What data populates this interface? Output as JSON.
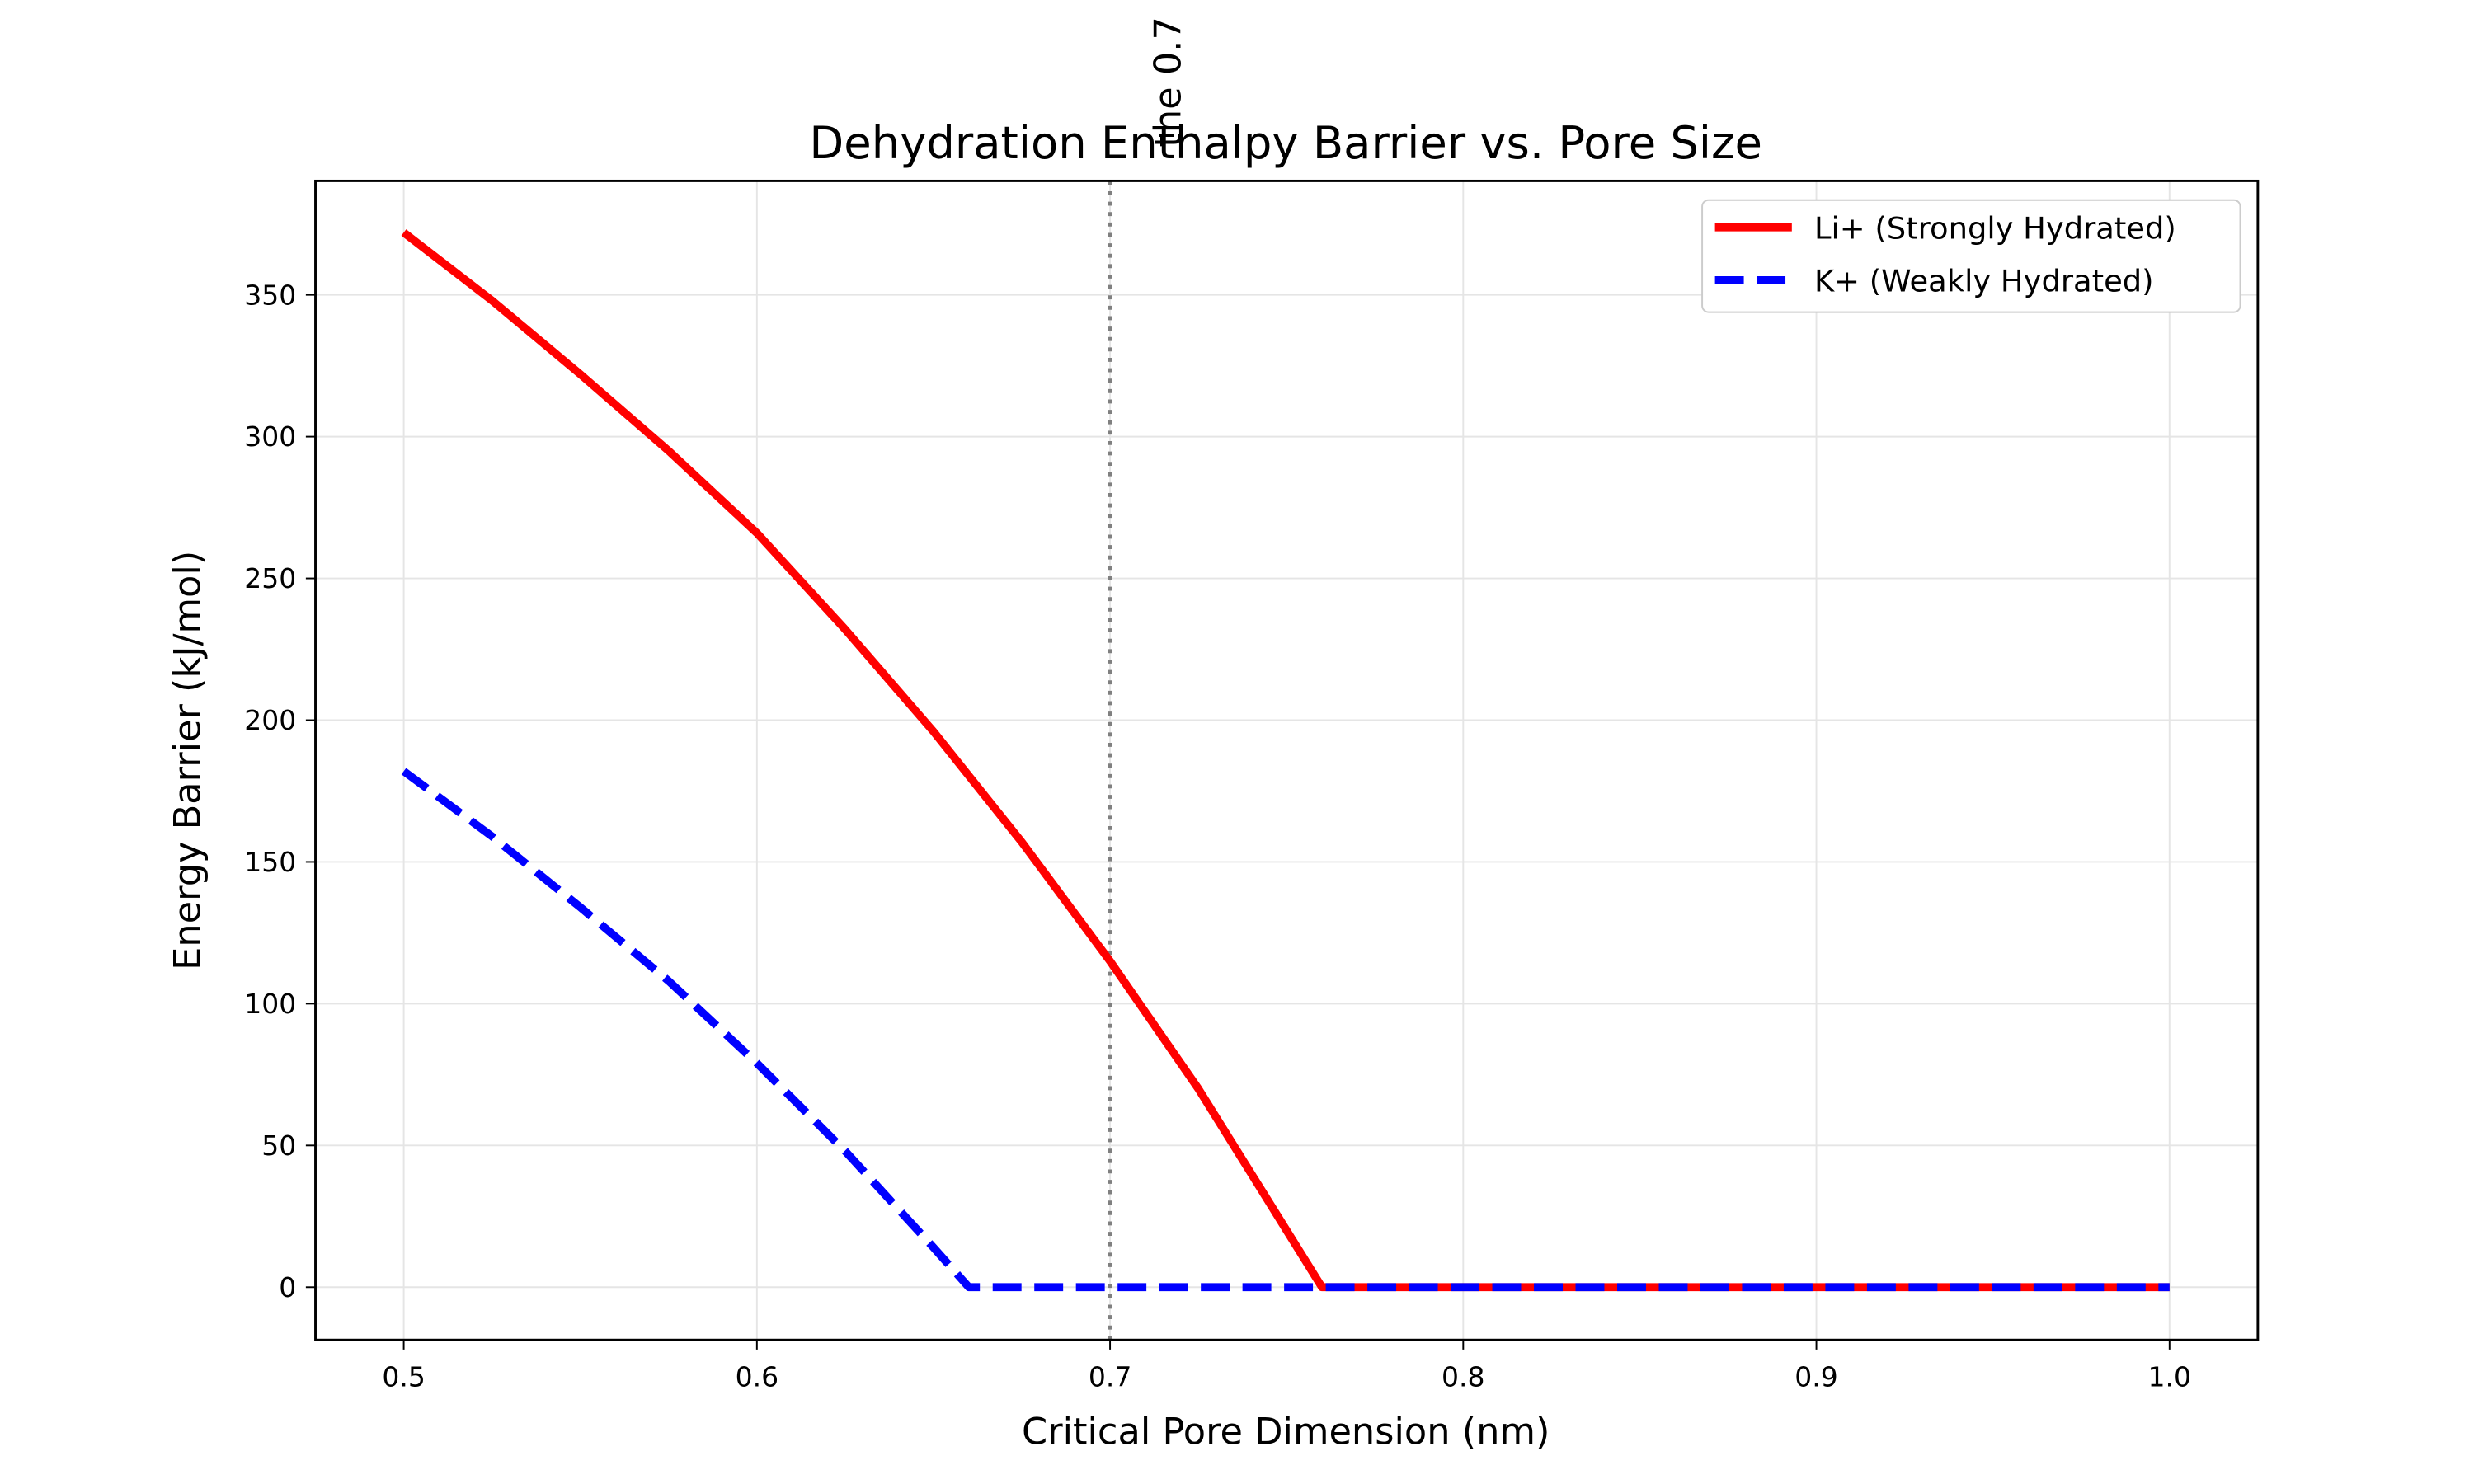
{
  "chart_data": {
    "type": "line",
    "title": "Dehydration Enthalpy Barrier vs. Pore Size",
    "xlabel": "Critical Pore Dimension (nm)",
    "ylabel": "Energy Barrier (kJ/mol)",
    "xlim": [
      0.475,
      1.025
    ],
    "ylim": [
      -18.6,
      390.2
    ],
    "xticks": [
      "0.5",
      "0.6",
      "0.7",
      "0.8",
      "0.9",
      "1.0"
    ],
    "yticks": [
      "0",
      "50",
      "100",
      "150",
      "200",
      "250",
      "300",
      "350"
    ],
    "grid": true,
    "legend_position": "top-right",
    "annotation": {
      "x": 0.7,
      "text": "the 0.7",
      "style": "dotted vertical line",
      "color": "#808080"
    },
    "series": [
      {
        "name": "Li+ (Strongly Hydrated)",
        "color": "#ff0000",
        "style": "solid",
        "x": [
          0.5,
          0.525,
          0.55,
          0.575,
          0.6,
          0.625,
          0.65,
          0.675,
          0.7,
          0.725,
          0.75,
          0.76,
          0.8,
          0.85,
          0.9,
          0.95,
          1.0
        ],
        "y": [
          372,
          348,
          322,
          295,
          266,
          232,
          196,
          157,
          115,
          70,
          20,
          0,
          0,
          0,
          0,
          0,
          0
        ]
      },
      {
        "name": "K+ (Weakly Hydrated)",
        "color": "#0000ff",
        "style": "dashed",
        "x": [
          0.5,
          0.525,
          0.55,
          0.575,
          0.6,
          0.625,
          0.65,
          0.66,
          0.7,
          0.8,
          0.9,
          1.0
        ],
        "y": [
          182,
          159,
          134,
          108,
          79,
          48,
          14,
          0,
          0,
          0,
          0,
          0
        ]
      }
    ]
  }
}
